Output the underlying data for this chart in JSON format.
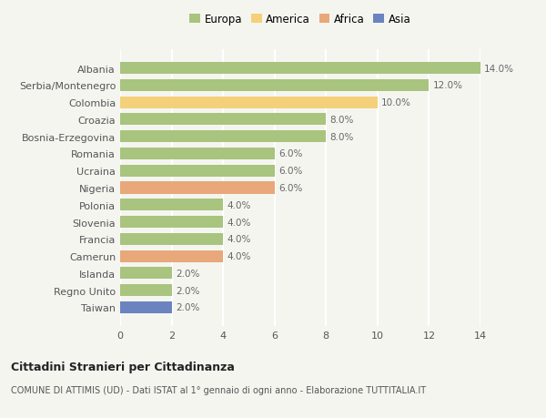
{
  "countries": [
    "Albania",
    "Serbia/Montenegro",
    "Colombia",
    "Croazia",
    "Bosnia-Erzegovina",
    "Romania",
    "Ucraina",
    "Nigeria",
    "Polonia",
    "Slovenia",
    "Francia",
    "Camerun",
    "Islanda",
    "Regno Unito",
    "Taiwan"
  ],
  "values": [
    14.0,
    12.0,
    10.0,
    8.0,
    8.0,
    6.0,
    6.0,
    6.0,
    4.0,
    4.0,
    4.0,
    4.0,
    2.0,
    2.0,
    2.0
  ],
  "continents": [
    "Europa",
    "Europa",
    "America",
    "Europa",
    "Europa",
    "Europa",
    "Europa",
    "Africa",
    "Europa",
    "Europa",
    "Europa",
    "Africa",
    "Europa",
    "Europa",
    "Asia"
  ],
  "colors": {
    "Europa": "#a8c47e",
    "America": "#f5d07a",
    "Africa": "#e8a87a",
    "Asia": "#6b84c0"
  },
  "xlim": [
    0,
    14
  ],
  "xticks": [
    0,
    2,
    4,
    6,
    8,
    10,
    12,
    14
  ],
  "title": "Cittadini Stranieri per Cittadinanza",
  "subtitle": "COMUNE DI ATTIMIS (UD) - Dati ISTAT al 1° gennaio di ogni anno - Elaborazione TUTTITALIA.IT",
  "background_color": "#f5f5f0",
  "grid_color": "#ffffff",
  "bar_height": 0.7,
  "legend_order": [
    "Europa",
    "America",
    "Africa",
    "Asia"
  ]
}
